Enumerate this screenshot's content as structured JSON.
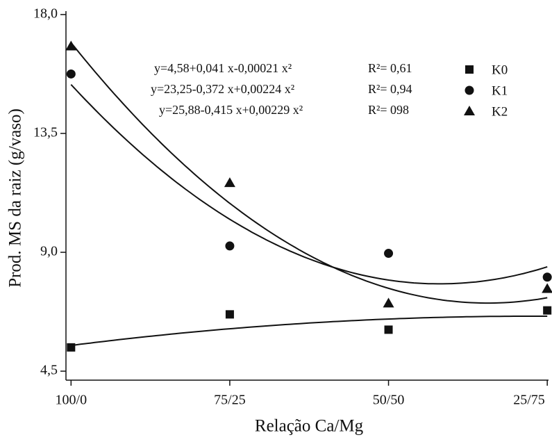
{
  "chart_data": {
    "type": "scatter",
    "x_label": "Relação Ca/Mg",
    "y_label": "Prod. MS da raiz (g/vaso)",
    "xlim": [
      24.2,
      100.2
    ],
    "xticks": [
      {
        "value": 25,
        "label": "100/0"
      },
      {
        "value": 50,
        "label": "75/25"
      },
      {
        "value": 75,
        "label": "50/50"
      },
      {
        "value": 100,
        "label": "25/75"
      }
    ],
    "ylim": [
      4.16,
      18.13
    ],
    "yticks": [
      {
        "value": 4.5,
        "label": "4,5"
      },
      {
        "value": 9,
        "label": "9,0"
      },
      {
        "value": 13.5,
        "label": "13,5"
      },
      {
        "value": 18,
        "label": "18,0"
      }
    ],
    "x": [
      25,
      50,
      75,
      100
    ],
    "color": "#111111",
    "series": [
      {
        "name": "K0",
        "marker": "square",
        "values": [
          5.4,
          6.65,
          6.07,
          6.8
        ],
        "fit": {
          "a": 4.58,
          "b": 0.041,
          "c": -0.00021,
          "equation": "y=4,58+0,041 x-0,00021 x²",
          "r2": "R²= 0,61"
        }
      },
      {
        "name": "K1",
        "marker": "circle",
        "values": [
          15.75,
          9.24,
          8.96,
          8.06
        ],
        "fit": {
          "a": 23.25,
          "b": -0.372,
          "c": 0.00224,
          "equation": "y=23,25-0,372 x+0,00224 x²",
          "r2": "R²= 0,94"
        }
      },
      {
        "name": "K2",
        "marker": "triangle",
        "values": [
          16.8,
          11.63,
          7.07,
          7.62
        ],
        "fit": {
          "a": 25.88,
          "b": -0.415,
          "c": 0.00229,
          "equation": "y=25,88-0,415 x+0,00229 x²",
          "r2": "R²= 098"
        }
      }
    ]
  }
}
